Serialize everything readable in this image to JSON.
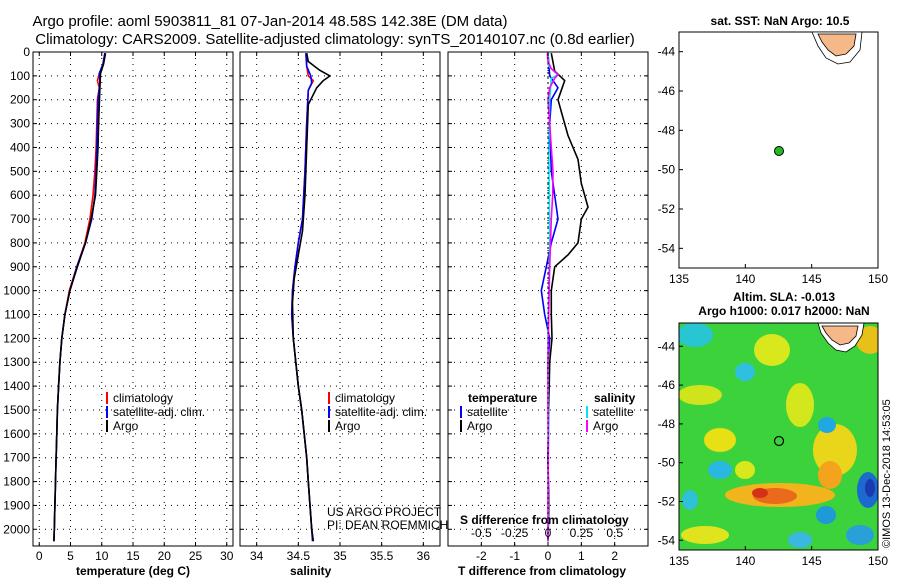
{
  "title": {
    "line1": "Argo profile: aoml 5903811_81 07-Jan-2014 48.58S 142.38E (DM data)",
    "line2": "Climatology: CARS2009. Satellite-adjusted climatology: synTS_20140107.nc (0.8d earlier)"
  },
  "colors": {
    "clim": "#ff0000",
    "sat": "#0000ff",
    "argo": "#000000",
    "sal_sat": "#00e5ee",
    "sal_argo": "#ff00ff",
    "land": "#f5b888"
  },
  "credit": {
    "line1": "US ARGO PROJECT",
    "line2": "PI: DEAN ROEMMICH"
  },
  "watermark": "©IMOS 13-Dec-2018 14:53:05",
  "chart_data": [
    {
      "type": "line",
      "id": "temperature",
      "xlabel": "temperature (deg C)",
      "ylabel": "",
      "xlim": [
        -1,
        31
      ],
      "ylim": [
        2070,
        0
      ],
      "xticks": [
        0,
        5,
        10,
        15,
        20,
        25,
        30
      ],
      "yticks": [
        0,
        100,
        200,
        300,
        400,
        500,
        600,
        700,
        800,
        900,
        1000,
        1100,
        1200,
        1300,
        1400,
        1500,
        1600,
        1700,
        1800,
        1900,
        2000
      ],
      "legend": [
        "climatology",
        "satellite-adj. clim.",
        "Argo"
      ],
      "series": [
        {
          "name": "climatology",
          "color": "#ff0000",
          "points": [
            [
              10.5,
              5
            ],
            [
              10.2,
              50
            ],
            [
              9.6,
              90
            ],
            [
              9.3,
              120
            ],
            [
              9.6,
              150
            ],
            [
              9.3,
              200
            ],
            [
              9.2,
              300
            ],
            [
              9.1,
              400
            ],
            [
              8.9,
              500
            ],
            [
              8.6,
              600
            ],
            [
              8.1,
              700
            ],
            [
              7.3,
              800
            ],
            [
              6.0,
              900
            ],
            [
              4.8,
              1000
            ],
            [
              4.1,
              1100
            ],
            [
              3.6,
              1200
            ],
            [
              3.3,
              1300
            ],
            [
              3.1,
              1400
            ],
            [
              2.9,
              1500
            ],
            [
              2.8,
              1600
            ],
            [
              2.7,
              1700
            ],
            [
              2.6,
              1800
            ],
            [
              2.5,
              1900
            ],
            [
              2.4,
              2000
            ],
            [
              2.35,
              2050
            ]
          ]
        },
        {
          "name": "satellite-adj. clim.",
          "color": "#0000ff",
          "points": [
            [
              10.5,
              5
            ],
            [
              10.2,
              50
            ],
            [
              9.6,
              90
            ],
            [
              9.7,
              130
            ],
            [
              9.6,
              150
            ],
            [
              9.4,
              200
            ],
            [
              9.3,
              300
            ],
            [
              9.2,
              400
            ],
            [
              9.1,
              500
            ],
            [
              8.9,
              600
            ],
            [
              8.4,
              700
            ],
            [
              7.4,
              800
            ],
            [
              6.0,
              900
            ],
            [
              4.9,
              1000
            ],
            [
              4.1,
              1100
            ],
            [
              3.6,
              1200
            ],
            [
              3.3,
              1300
            ],
            [
              3.1,
              1400
            ],
            [
              2.9,
              1500
            ],
            [
              2.8,
              1600
            ],
            [
              2.7,
              1700
            ],
            [
              2.6,
              1800
            ],
            [
              2.5,
              1900
            ],
            [
              2.4,
              2000
            ],
            [
              2.35,
              2050
            ]
          ]
        },
        {
          "name": "Argo",
          "color": "#000000",
          "points": [
            [
              10.6,
              5
            ],
            [
              10.3,
              50
            ],
            [
              9.8,
              90
            ],
            [
              9.7,
              150
            ],
            [
              9.5,
              300
            ],
            [
              9.4,
              400
            ],
            [
              9.2,
              500
            ],
            [
              9.0,
              600
            ],
            [
              8.3,
              700
            ],
            [
              7.4,
              800
            ],
            [
              6.1,
              900
            ],
            [
              4.9,
              1000
            ],
            [
              4.1,
              1100
            ],
            [
              3.6,
              1200
            ],
            [
              3.3,
              1300
            ],
            [
              3.1,
              1400
            ],
            [
              2.9,
              1500
            ],
            [
              2.8,
              1600
            ],
            [
              2.7,
              1700
            ],
            [
              2.6,
              1800
            ],
            [
              2.5,
              1900
            ],
            [
              2.4,
              2000
            ],
            [
              2.35,
              2050
            ]
          ]
        }
      ]
    },
    {
      "type": "line",
      "id": "salinity",
      "xlabel": "salinity",
      "xlim": [
        33.8,
        36.2
      ],
      "ylim": [
        2070,
        0
      ],
      "xticks": [
        34,
        34.5,
        35,
        35.5,
        36
      ],
      "xticklabels": [
        "34",
        "34.5",
        "35",
        "35.5",
        "36"
      ],
      "legend": [
        "climatology",
        "satellite-adj. clim.",
        "Argo"
      ],
      "series": [
        {
          "name": "climatology",
          "color": "#ff0000",
          "points": [
            [
              34.6,
              5
            ],
            [
              34.6,
              60
            ],
            [
              34.62,
              100
            ],
            [
              34.68,
              120
            ],
            [
              34.62,
              160
            ],
            [
              34.6,
              300
            ],
            [
              34.58,
              500
            ],
            [
              34.55,
              700
            ],
            [
              34.5,
              800
            ],
            [
              34.46,
              900
            ],
            [
              34.43,
              1000
            ],
            [
              34.42,
              1100
            ],
            [
              34.44,
              1200
            ],
            [
              34.47,
              1300
            ],
            [
              34.5,
              1400
            ],
            [
              34.54,
              1500
            ],
            [
              34.57,
              1600
            ],
            [
              34.6,
              1700
            ],
            [
              34.62,
              1800
            ],
            [
              34.64,
              1900
            ],
            [
              34.66,
              2000
            ],
            [
              34.68,
              2050
            ]
          ]
        },
        {
          "name": "satellite-adj. clim.",
          "color": "#0000ff",
          "points": [
            [
              34.59,
              5
            ],
            [
              34.6,
              60
            ],
            [
              34.65,
              100
            ],
            [
              34.66,
              130
            ],
            [
              34.62,
              160
            ],
            [
              34.6,
              300
            ],
            [
              34.58,
              500
            ],
            [
              34.55,
              700
            ],
            [
              34.5,
              800
            ],
            [
              34.46,
              900
            ],
            [
              34.43,
              1000
            ],
            [
              34.42,
              1100
            ],
            [
              34.44,
              1200
            ],
            [
              34.47,
              1300
            ],
            [
              34.5,
              1400
            ],
            [
              34.54,
              1500
            ],
            [
              34.57,
              1600
            ],
            [
              34.6,
              1700
            ],
            [
              34.62,
              1800
            ],
            [
              34.64,
              1900
            ],
            [
              34.66,
              2000
            ],
            [
              34.67,
              2050
            ]
          ]
        },
        {
          "name": "Argo",
          "color": "#000000",
          "points": [
            [
              34.6,
              5
            ],
            [
              34.62,
              40
            ],
            [
              34.75,
              75
            ],
            [
              34.88,
              100
            ],
            [
              34.8,
              120
            ],
            [
              34.72,
              150
            ],
            [
              34.62,
              220
            ],
            [
              34.6,
              400
            ],
            [
              34.58,
              600
            ],
            [
              34.55,
              750
            ],
            [
              34.5,
              850
            ],
            [
              34.45,
              950
            ],
            [
              34.43,
              1050
            ],
            [
              34.44,
              1200
            ],
            [
              34.47,
              1300
            ],
            [
              34.5,
              1400
            ],
            [
              34.54,
              1500
            ],
            [
              34.57,
              1600
            ],
            [
              34.6,
              1700
            ],
            [
              34.62,
              1800
            ],
            [
              34.64,
              1900
            ],
            [
              34.66,
              2000
            ],
            [
              34.68,
              2050
            ]
          ]
        }
      ]
    },
    {
      "type": "line",
      "id": "difference",
      "xlabel": "T difference from climatology",
      "title_inner": "S difference from climatology",
      "xlim": [
        -3,
        3
      ],
      "ylim": [
        2070,
        0
      ],
      "xticks": [
        -2,
        -1,
        0,
        1,
        2
      ],
      "xticklabels": [
        "-2",
        "-1",
        "0",
        "1",
        "2"
      ],
      "sticks": [
        -0.5,
        -0.25,
        0,
        0.25,
        0.5
      ],
      "sticklabels": [
        "-0.5",
        "-0.25",
        "0",
        "0.25",
        "0.5"
      ],
      "s_scale": 4,
      "legend_left": {
        "title": "temperature",
        "items": [
          "satellite",
          "Argo"
        ]
      },
      "legend_right": {
        "title": "salinity",
        "items": [
          "satellite",
          "Argo"
        ]
      },
      "series": [
        {
          "name": "T satellite",
          "color": "#0000ff",
          "points": [
            [
              0,
              5
            ],
            [
              0.05,
              100
            ],
            [
              0.3,
              150
            ],
            [
              0.1,
              200
            ],
            [
              0.05,
              300
            ],
            [
              0.1,
              500
            ],
            [
              0.2,
              600
            ],
            [
              0.3,
              700
            ],
            [
              0.1,
              800
            ],
            [
              -0.05,
              900
            ],
            [
              -0.2,
              1000
            ],
            [
              -0.1,
              1100
            ],
            [
              0.05,
              1200
            ],
            [
              0,
              1300
            ],
            [
              0.02,
              1500
            ],
            [
              0,
              1700
            ],
            [
              0.02,
              1900
            ],
            [
              0,
              2050
            ]
          ]
        },
        {
          "name": "T Argo",
          "color": "#000000",
          "points": [
            [
              0.1,
              5
            ],
            [
              0.2,
              80
            ],
            [
              0.5,
              120
            ],
            [
              0.3,
              200
            ],
            [
              0.4,
              250
            ],
            [
              0.6,
              350
            ],
            [
              0.9,
              450
            ],
            [
              1.0,
              550
            ],
            [
              1.2,
              650
            ],
            [
              1.0,
              700
            ],
            [
              0.9,
              800
            ],
            [
              0.6,
              850
            ],
            [
              0.2,
              900
            ],
            [
              0.1,
              1000
            ],
            [
              0.1,
              1100
            ],
            [
              0.12,
              1200
            ],
            [
              0.05,
              1300
            ],
            [
              0.02,
              1500
            ],
            [
              0,
              1700
            ],
            [
              0.02,
              1900
            ],
            [
              0,
              2050
            ]
          ]
        },
        {
          "name": "S satellite",
          "color": "#00e5ee",
          "points": [
            [
              0,
              5
            ],
            [
              0.02,
              60
            ],
            [
              0.3,
              95
            ],
            [
              0.1,
              110
            ],
            [
              0.05,
              200
            ],
            [
              0.02,
              400
            ],
            [
              0.04,
              600
            ],
            [
              0.05,
              800
            ],
            [
              0.02,
              1000
            ],
            [
              0,
              1200
            ],
            [
              0.01,
              1400
            ],
            [
              0.02,
              1600
            ],
            [
              0,
              1800
            ],
            [
              0.01,
              2000
            ],
            [
              0,
              2050
            ]
          ]
        },
        {
          "name": "S Argo",
          "color": "#ff00ff",
          "points": [
            [
              -0.02,
              5
            ],
            [
              0.0,
              40
            ],
            [
              0.1,
              70
            ],
            [
              0.3,
              95
            ],
            [
              0.2,
              110
            ],
            [
              0.05,
              150
            ],
            [
              0.0,
              200
            ],
            [
              0.05,
              300
            ],
            [
              0.1,
              400
            ],
            [
              0.15,
              500
            ],
            [
              0.14,
              600
            ],
            [
              0.1,
              700
            ],
            [
              0.05,
              900
            ],
            [
              0.02,
              1100
            ],
            [
              0,
              1300
            ],
            [
              0,
              1500
            ],
            [
              0.01,
              1700
            ],
            [
              0,
              1900
            ],
            [
              0,
              2050
            ]
          ]
        }
      ]
    },
    {
      "type": "scatter",
      "id": "sst-map",
      "title": "sat. SST: NaN Argo: 10.5",
      "xlim": [
        135,
        150
      ],
      "ylim": [
        -55,
        -43
      ],
      "xticks": [
        135,
        140,
        145,
        150
      ],
      "yticks": [
        -44,
        -46,
        -48,
        -50,
        -52,
        -54
      ],
      "argo_position": {
        "lon": 142.38,
        "lat": -48.58
      }
    },
    {
      "type": "heatmap",
      "id": "sla-map",
      "title_line1": "Altim. SLA: -0.013",
      "title_line2": "Argo h1000: 0.017 h2000: NaN",
      "xlim": [
        135,
        150
      ],
      "ylim": [
        -54.5,
        -42.8
      ],
      "xticks": [
        135,
        140,
        145,
        150
      ],
      "yticks": [
        -44,
        -46,
        -48,
        -50,
        -52,
        -54
      ],
      "argo_position": {
        "lon": 142.38,
        "lat": -48.58
      }
    }
  ]
}
